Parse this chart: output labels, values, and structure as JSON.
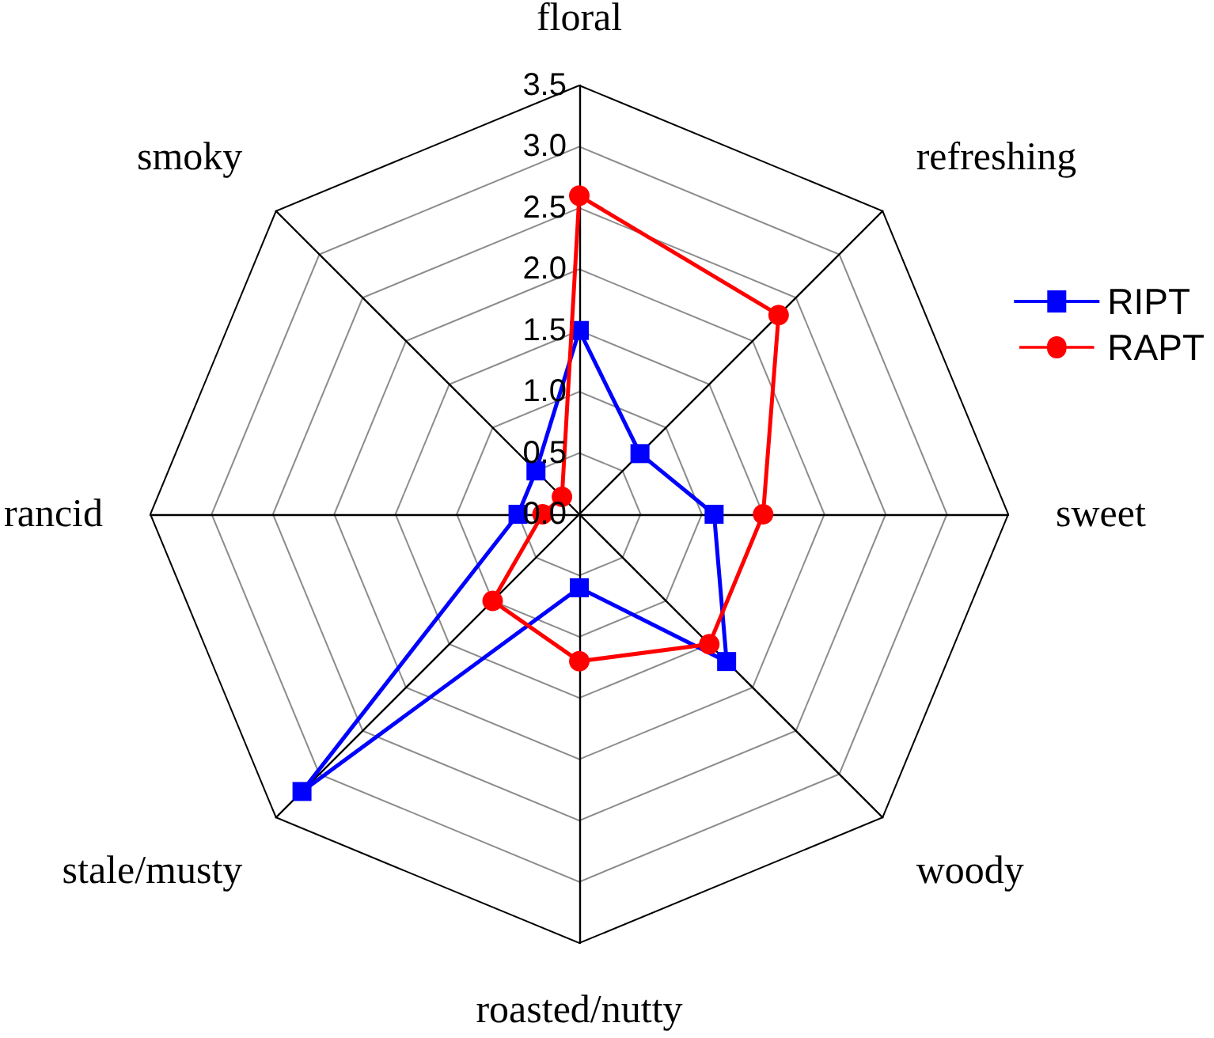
{
  "chart_data": {
    "type": "radar",
    "categories": [
      "floral",
      "refreshing",
      "sweet",
      "woody",
      "roasted/nutty",
      "stale/musty",
      "rancid",
      "smoky"
    ],
    "series": [
      {
        "name": "RIPT",
        "color": "#0000ff",
        "marker": "square",
        "values": [
          1.5,
          0.7,
          1.1,
          1.7,
          0.6,
          3.2,
          0.5,
          0.5
        ]
      },
      {
        "name": "RAPT",
        "color": "#ff0000",
        "marker": "circle",
        "values": [
          2.6,
          2.3,
          1.5,
          1.5,
          1.2,
          1.0,
          0.3,
          0.2
        ]
      }
    ],
    "ylim": [
      0,
      3.5
    ],
    "yticks": [
      {
        "value": 0,
        "label": "0.0"
      },
      0.5,
      {
        "value": 1,
        "label": "1.0"
      },
      1.5,
      {
        "value": 2,
        "label": "2.0"
      },
      2.5,
      {
        "value": 3,
        "label": "3.0"
      },
      3.5
    ],
    "grid": true,
    "legend": "right",
    "line_style": "solid"
  }
}
